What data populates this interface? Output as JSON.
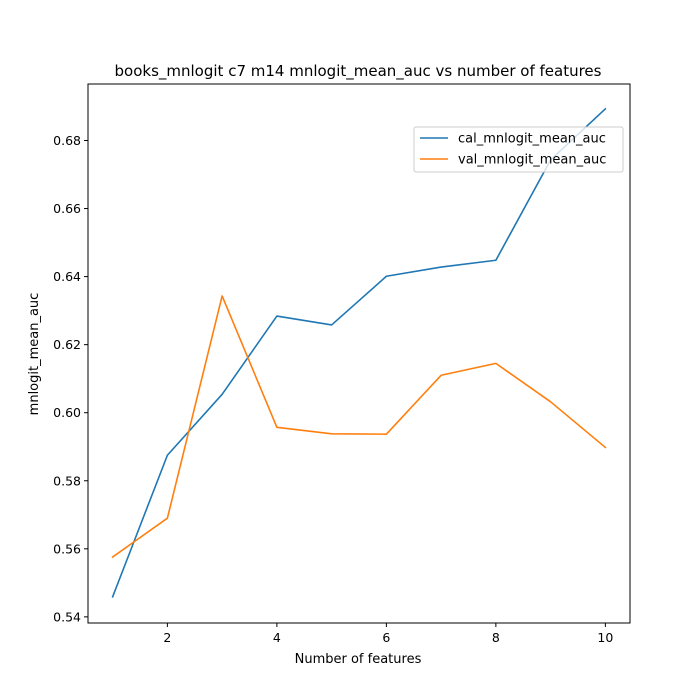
{
  "chart_data": {
    "type": "line",
    "title": "books_mnlogit c7 m14 mnlogit_mean_auc vs number of features",
    "xlabel": "Number of features",
    "ylabel": "mnlogit_mean_auc",
    "xlim": [
      0.55,
      10.45
    ],
    "ylim": [
      0.5382,
      0.6966
    ],
    "xticks": [
      2,
      4,
      6,
      8,
      10
    ],
    "yticks": [
      0.54,
      0.56,
      0.58,
      0.6,
      0.62,
      0.64,
      0.66,
      0.68
    ],
    "ytick_labels": [
      "0.54",
      "0.56",
      "0.58",
      "0.60",
      "0.62",
      "0.64",
      "0.66",
      "0.68"
    ],
    "x": [
      1,
      2,
      3,
      4,
      5,
      6,
      7,
      8,
      9,
      10
    ],
    "series": [
      {
        "name": "cal_mnlogit_mean_auc",
        "color": "#1f77b4",
        "values": [
          0.5459,
          0.5875,
          0.6054,
          0.6284,
          0.6258,
          0.6401,
          0.6428,
          0.6448,
          0.6743,
          0.6893
        ]
      },
      {
        "name": "val_mnlogit_mean_auc",
        "color": "#ff7f0e",
        "values": [
          0.5576,
          0.569,
          0.6343,
          0.5957,
          0.5938,
          0.5937,
          0.611,
          0.6145,
          0.6032,
          0.5898
        ]
      }
    ],
    "legend": "upper right",
    "grid": false
  }
}
